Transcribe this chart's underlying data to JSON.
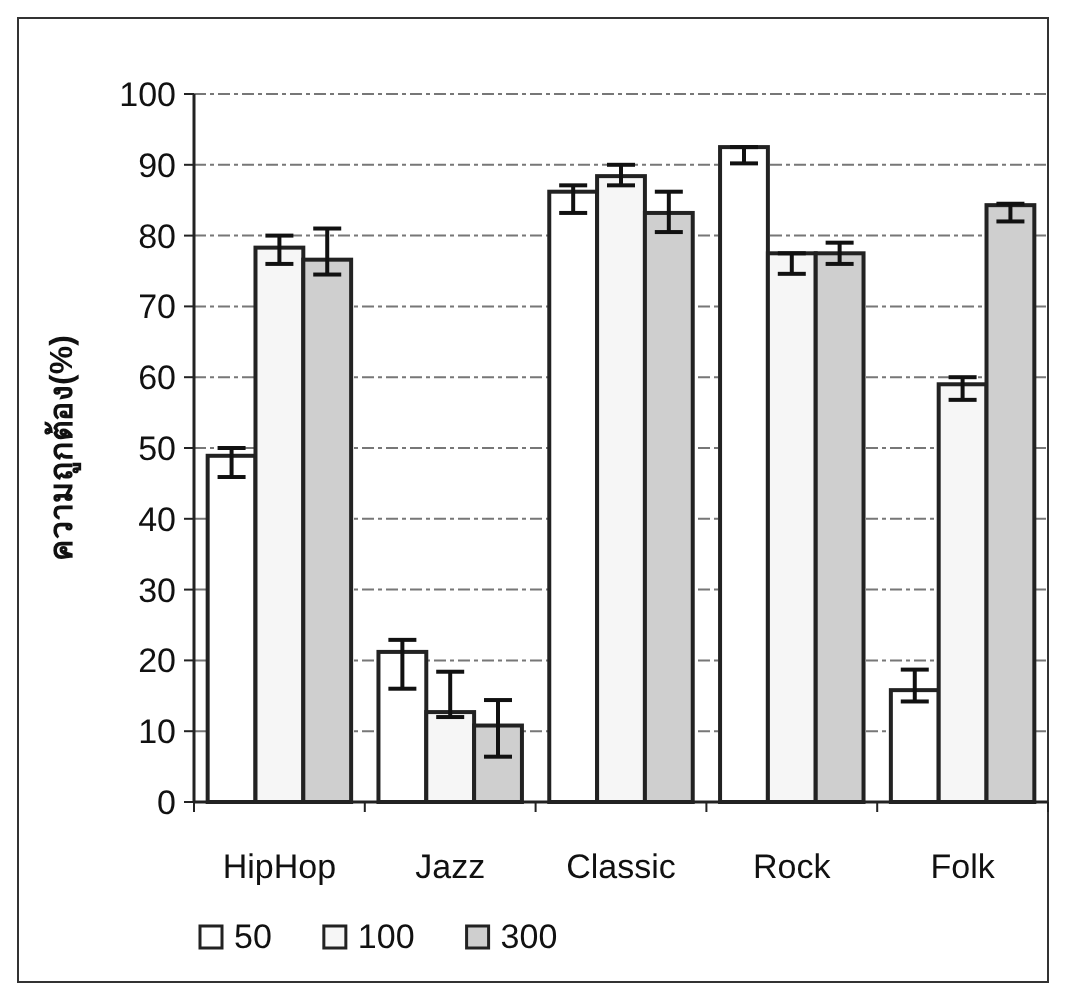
{
  "chart_data": {
    "type": "bar",
    "ylabel": "ความถูกต้อง(%)",
    "categories": [
      "HipHop",
      "Jazz",
      "Classic",
      "Rock",
      "Folk"
    ],
    "series": [
      {
        "name": "50",
        "color": "#ffffff",
        "values": [
          48.9,
          21.2,
          86.2,
          92.5,
          15.8
        ],
        "errors": [
          [
            45.9,
            50
          ],
          [
            16,
            22.9
          ],
          [
            83.2,
            87.1
          ],
          [
            90.2,
            92.5
          ],
          [
            14.2,
            18.7
          ]
        ]
      },
      {
        "name": "100",
        "color": "#f6f6f6",
        "values": [
          78.3,
          12.7,
          88.4,
          77.5,
          59
        ],
        "errors": [
          [
            76,
            80
          ],
          [
            12,
            18.4
          ],
          [
            87.1,
            90
          ],
          [
            74.6,
            77.5
          ],
          [
            56.8,
            60
          ]
        ]
      },
      {
        "name": "300",
        "color": "#cfcfcf",
        "values": [
          76.6,
          10.8,
          83.2,
          77.5,
          84.3
        ],
        "errors": [
          [
            74.5,
            81
          ],
          [
            6.4,
            14.4
          ],
          [
            80.5,
            86.2
          ],
          [
            76,
            79
          ],
          [
            82,
            84.5
          ]
        ]
      }
    ],
    "ylim": [
      0,
      100
    ],
    "yticks": [
      0,
      10,
      20,
      30,
      40,
      50,
      60,
      70,
      80,
      90,
      100
    ],
    "grid": "y",
    "legend": "bottom"
  }
}
